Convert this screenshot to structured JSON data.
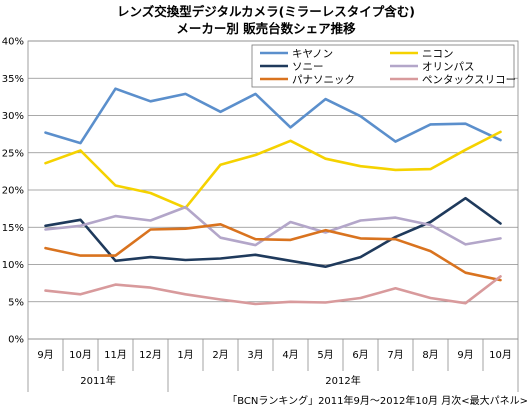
{
  "chart_data": {
    "type": "line",
    "title": "レンズ交換型デジタルカメラ(ミラーレスタイプ含む)",
    "subtitle": "メーカー別 販売台数シェア推移",
    "categories": [
      "9月",
      "10月",
      "11月",
      "12月",
      "1月",
      "2月",
      "3月",
      "4月",
      "5月",
      "6月",
      "7月",
      "8月",
      "9月",
      "10月"
    ],
    "year_labels": [
      "2011年",
      "2012年"
    ],
    "ylim": [
      0,
      40
    ],
    "y_ticks": [
      "0%",
      "5%",
      "10%",
      "15%",
      "20%",
      "25%",
      "30%",
      "35%",
      "40%"
    ],
    "grid": true,
    "legend_position": "top-right",
    "series": [
      {
        "name": "キヤノン",
        "color": "#5b8fcc",
        "values": [
          27.7,
          26.3,
          33.6,
          31.9,
          32.9,
          30.5,
          32.9,
          28.4,
          32.2,
          29.9,
          26.5,
          28.8,
          28.9,
          26.7
        ]
      },
      {
        "name": "ニコン",
        "color": "#f5d200",
        "values": [
          23.6,
          25.3,
          20.6,
          19.6,
          17.6,
          23.4,
          24.7,
          26.6,
          24.2,
          23.2,
          22.7,
          22.8,
          25.4,
          27.8
        ]
      },
      {
        "name": "ソニー",
        "color": "#1f3a5c",
        "values": [
          15.2,
          16.0,
          10.5,
          11.0,
          10.6,
          10.8,
          11.3,
          10.5,
          9.7,
          11.0,
          13.7,
          15.7,
          18.9,
          15.5
        ]
      },
      {
        "name": "オリンパス",
        "color": "#b3a6c9",
        "values": [
          14.7,
          15.2,
          16.5,
          15.9,
          17.7,
          13.6,
          12.6,
          15.7,
          14.3,
          15.9,
          16.3,
          15.3,
          12.7,
          13.5
        ]
      },
      {
        "name": "パナソニック",
        "color": "#d9731f",
        "values": [
          12.2,
          11.2,
          11.2,
          14.7,
          14.8,
          15.4,
          13.4,
          13.3,
          14.6,
          13.5,
          13.4,
          11.8,
          8.9,
          7.9
        ]
      },
      {
        "name": "ペンタックスリコー",
        "color": "#d89a9c",
        "values": [
          6.5,
          6.0,
          7.3,
          6.9,
          6.0,
          5.3,
          4.7,
          5.0,
          4.9,
          5.5,
          6.8,
          5.5,
          4.8,
          8.4
        ]
      }
    ]
  },
  "source_note": "「BCNランキング」2011年9月～2012年10月 月次<最大パネル>"
}
